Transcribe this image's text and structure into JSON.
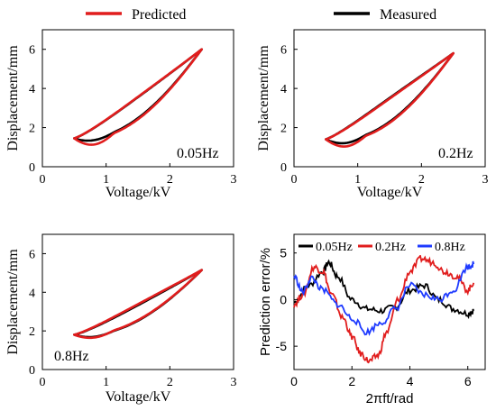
{
  "legend_top": [
    {
      "label": "Predicted",
      "color": "#e11d1d"
    },
    {
      "label": "Measured",
      "color": "#000000"
    }
  ],
  "chart_data": [
    {
      "type": "line",
      "annotation": "0.05Hz",
      "xlabel": "Voltage/kV",
      "ylabel": "Displacement/mm",
      "xlim": [
        0,
        3
      ],
      "ylim": [
        0,
        7
      ],
      "xticks": [
        "0",
        "1",
        "2",
        "3"
      ],
      "yticks": [
        "0",
        "2",
        "4",
        "6"
      ],
      "grid": false,
      "loop": {
        "vmin": 0.5,
        "vmax": 2.5,
        "dmin": 1.45,
        "dmax": 6.0
      },
      "series": [
        {
          "name": "Measured",
          "color": "#000000",
          "upper_bow": 0.55,
          "lower_bow": 0.95,
          "lower_dip": 0.1
        },
        {
          "name": "Predicted",
          "color": "#e11d1d",
          "upper_bow": 0.6,
          "lower_bow": 1.05,
          "lower_dip": 0.3
        }
      ]
    },
    {
      "type": "line",
      "annotation": "0.2Hz",
      "xlabel": "Voltage/kV",
      "ylabel": "Displacement/mm",
      "xlim": [
        0,
        3
      ],
      "ylim": [
        0,
        7
      ],
      "xticks": [
        "0",
        "1",
        "2",
        "3"
      ],
      "yticks": [
        "0",
        "2",
        "4",
        "6"
      ],
      "grid": false,
      "loop": {
        "vmin": 0.5,
        "vmax": 2.5,
        "dmin": 1.4,
        "dmax": 5.8
      },
      "series": [
        {
          "name": "Measured",
          "color": "#000000",
          "upper_bow": 0.75,
          "lower_bow": 1.1,
          "lower_dip": 0.15
        },
        {
          "name": "Predicted",
          "color": "#e11d1d",
          "upper_bow": 0.65,
          "lower_bow": 1.2,
          "lower_dip": 0.3
        }
      ]
    },
    {
      "type": "line",
      "annotation": "0.8Hz",
      "xlabel": "Voltage/kV",
      "ylabel": "Displacement/mm",
      "xlim": [
        0,
        3
      ],
      "ylim": [
        0,
        7
      ],
      "xticks": [
        "0",
        "1",
        "2",
        "3"
      ],
      "yticks": [
        "0",
        "2",
        "4",
        "6"
      ],
      "grid": false,
      "loop": {
        "vmin": 0.5,
        "vmax": 2.5,
        "dmin": 1.8,
        "dmax": 5.15
      },
      "series": [
        {
          "name": "Measured",
          "color": "#000000",
          "upper_bow": 0.35,
          "lower_bow": 0.75,
          "lower_dip": 0.1
        },
        {
          "name": "Predicted",
          "color": "#e11d1d",
          "upper_bow": 0.5,
          "lower_bow": 0.7,
          "lower_dip": 0.15
        }
      ]
    },
    {
      "type": "line",
      "xlabel": "2πft/rad",
      "ylabel": "Prediction error/%",
      "xlim": [
        0,
        6.6
      ],
      "ylim": [
        -7.5,
        7
      ],
      "xticks": [
        "0",
        "2",
        "4",
        "6"
      ],
      "yticks": [
        "-5",
        "0",
        "5"
      ],
      "grid": false,
      "legend_position": "top",
      "series": [
        {
          "name": "0.05Hz",
          "color": "#000000",
          "x": [
            0.0,
            0.5,
            1.0,
            1.2,
            1.5,
            2.0,
            2.5,
            3.0,
            3.5,
            4.0,
            4.5,
            5.0,
            5.5,
            6.0,
            6.2
          ],
          "y": [
            -0.3,
            1.5,
            3.0,
            4.0,
            2.5,
            0.0,
            -1.0,
            -1.2,
            -0.8,
            1.0,
            1.5,
            0.0,
            -1.0,
            -1.5,
            -1.2
          ]
        },
        {
          "name": "0.2Hz",
          "color": "#e11d1d",
          "x": [
            0.0,
            0.3,
            0.7,
            1.0,
            1.3,
            1.7,
            2.0,
            2.3,
            2.6,
            2.9,
            3.2,
            3.6,
            4.0,
            4.4,
            4.8,
            5.2,
            5.6,
            6.0,
            6.2
          ],
          "y": [
            -0.5,
            0.5,
            3.5,
            3.0,
            0.5,
            -2.0,
            -4.0,
            -5.8,
            -6.6,
            -6.0,
            -3.5,
            0.0,
            3.0,
            4.4,
            4.0,
            3.0,
            2.5,
            1.0,
            1.8
          ]
        },
        {
          "name": "0.8Hz",
          "color": "#1f3bff",
          "x": [
            0.0,
            0.3,
            0.6,
            1.0,
            1.5,
            2.0,
            2.5,
            3.0,
            3.5,
            4.0,
            4.5,
            5.0,
            5.5,
            6.0,
            6.2
          ],
          "y": [
            2.5,
            0.8,
            2.3,
            1.0,
            -0.5,
            -2.0,
            -3.5,
            -2.5,
            -1.0,
            1.5,
            0.5,
            0.0,
            1.0,
            3.5,
            3.8
          ]
        }
      ]
    }
  ]
}
